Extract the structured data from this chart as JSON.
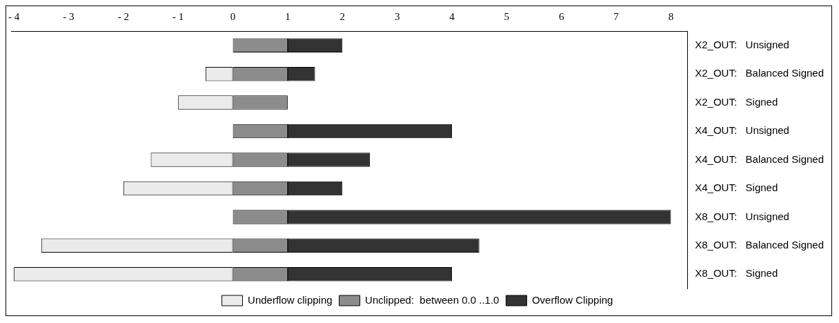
{
  "chart_data": {
    "type": "bar",
    "orientation": "horizontal",
    "stacked": true,
    "categories": [
      "X2_OUT:   Unsigned",
      "X2_OUT:   Balanced Signed",
      "X2_OUT:   Signed",
      "X4_OUT:   Unsigned",
      "X4_OUT:   Balanced Signed",
      "X4_OUT:   Signed",
      "X8_OUT:   Unsigned",
      "X8_OUT:   Balanced Signed",
      "X8_OUT:   Signed"
    ],
    "series": [
      {
        "name": "Underflow clipping",
        "color": "#ebebeb",
        "values": [
          null,
          -0.5,
          -1,
          null,
          -1.5,
          -2,
          null,
          -3.5,
          -4
        ]
      },
      {
        "name": "Unclipped:  between 0.0 ..1.0",
        "color": "#8c8c8c",
        "values": [
          1,
          1,
          1,
          1,
          1,
          1,
          1,
          1,
          1
        ]
      },
      {
        "name": "Overflow Clipping",
        "color": "#333333",
        "values": [
          1,
          0.5,
          null,
          3,
          1.5,
          1,
          7,
          3.5,
          3
        ]
      }
    ],
    "xlim": [
      -4.05,
      8.3
    ],
    "xticks": [
      {
        "value": -4,
        "label": "- 4"
      },
      {
        "value": -3,
        "label": "- 3"
      },
      {
        "value": -2,
        "label": "- 2"
      },
      {
        "value": -1,
        "label": "- 1"
      },
      0,
      1,
      2,
      3,
      4,
      5,
      6,
      7,
      8
    ],
    "grid": false,
    "legend": "bottom"
  }
}
